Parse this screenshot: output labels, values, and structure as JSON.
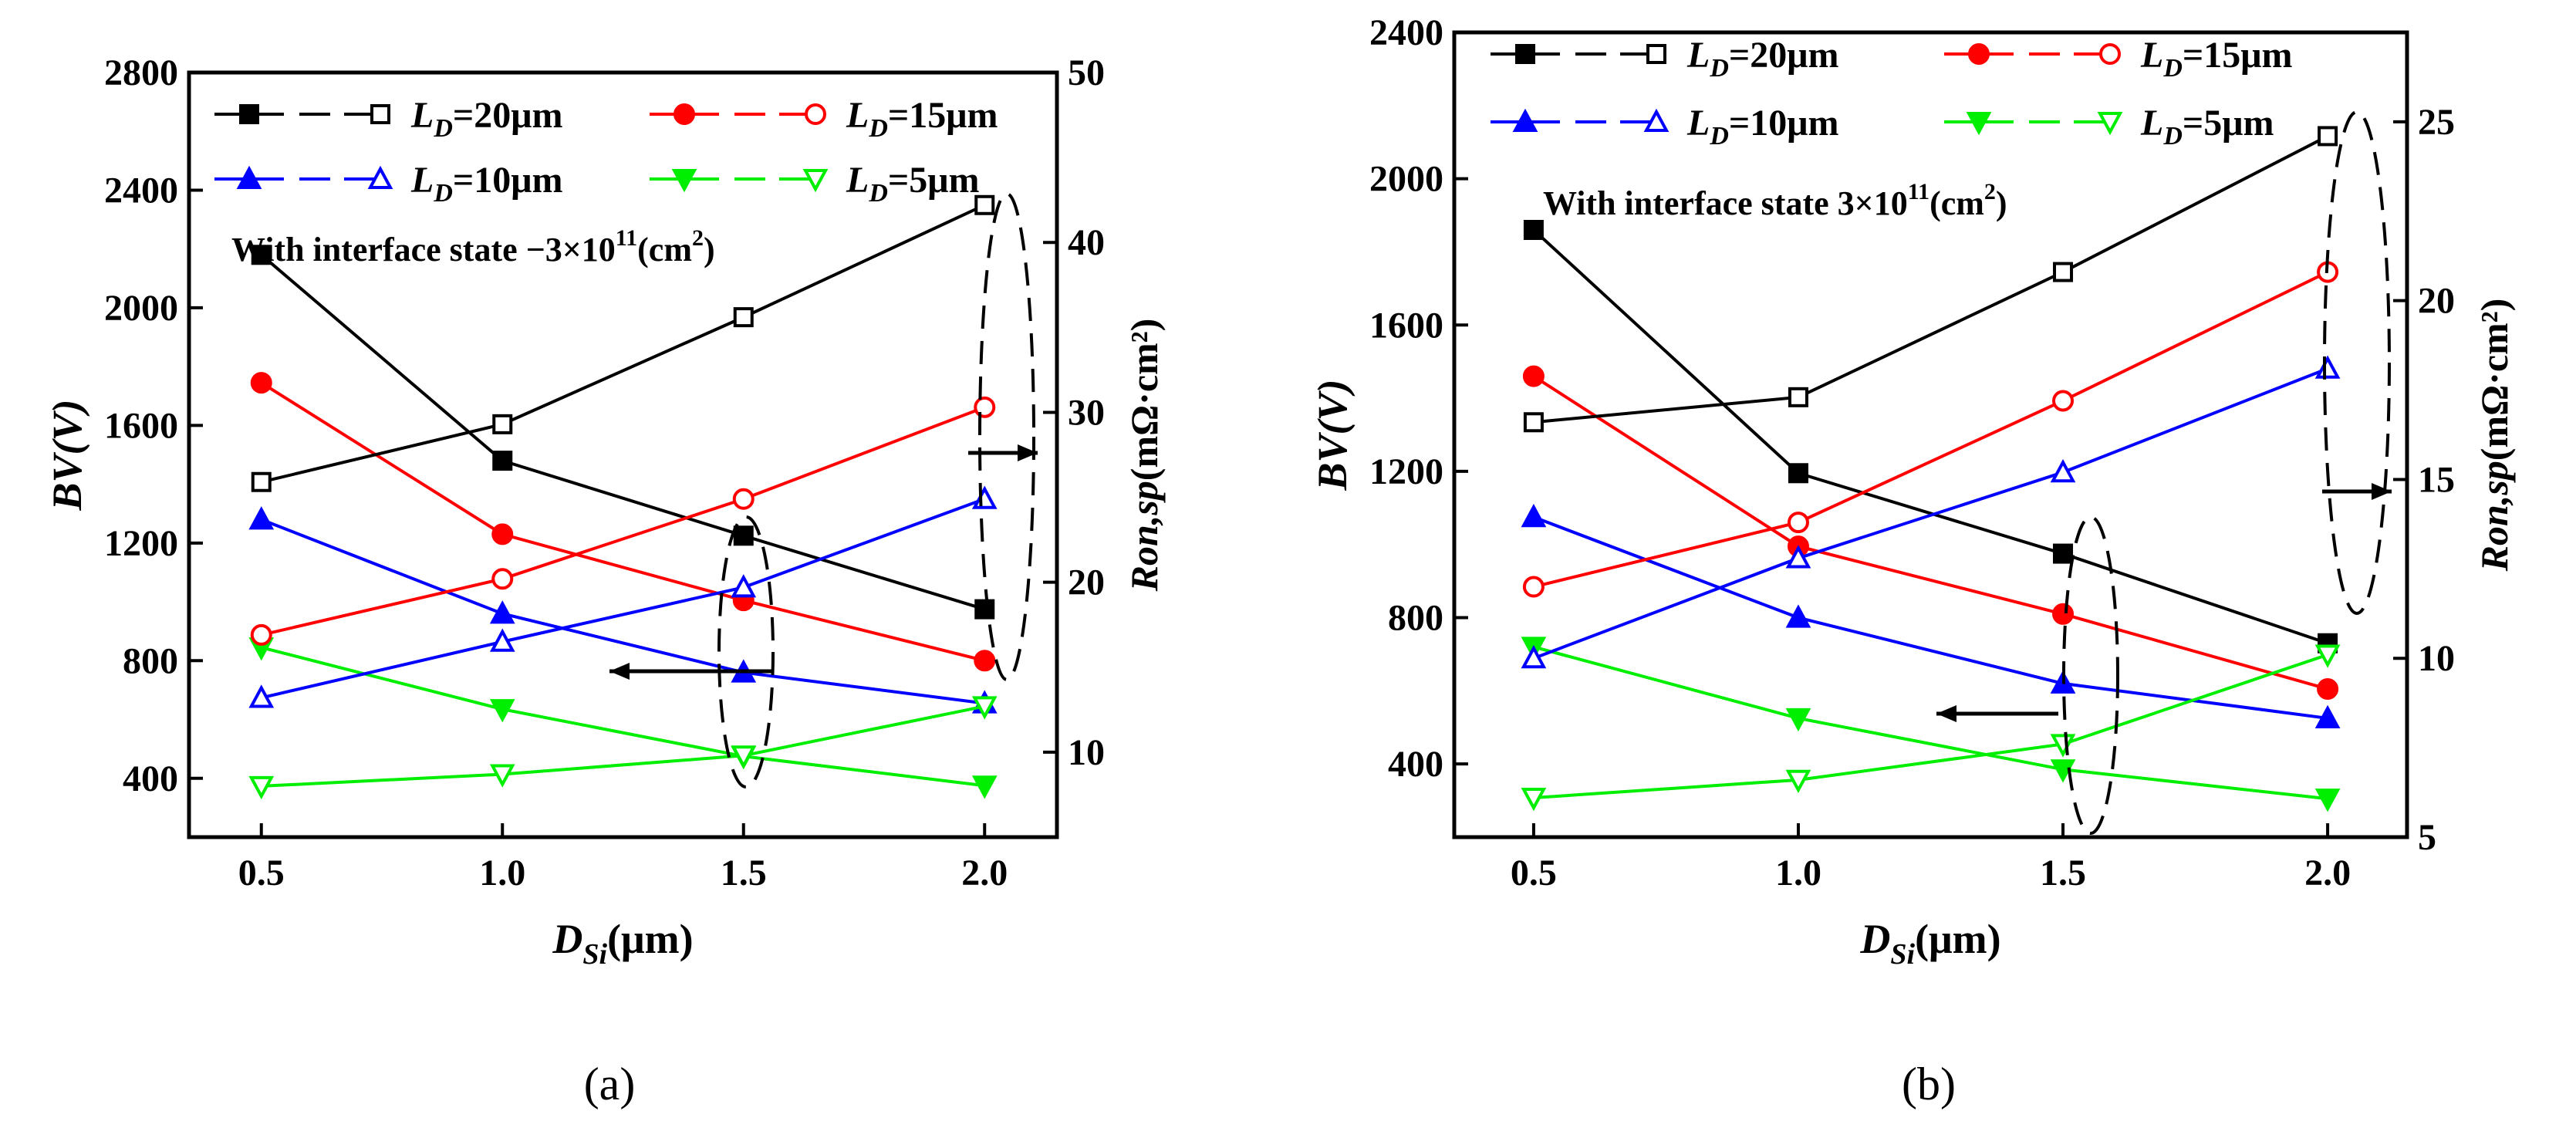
{
  "chart_data": [
    {
      "panel_label": "(a)",
      "type": "line",
      "x": [
        0.5,
        1.0,
        1.5,
        2.0
      ],
      "xlabel": {
        "main": "D",
        "sub": "Si",
        "rest": "(μm)"
      },
      "ylabel_left": "BV(V)",
      "ylabel_right": {
        "main": "R",
        "sub": "on,sp",
        "rest": "(mΩ·cm²)"
      },
      "annotation": {
        "text": "With interface state  −3×10",
        "sup": "11",
        "unit": "(cm",
        "unit_sup": "2",
        "close": ")"
      },
      "xlim": [
        0.35,
        2.15
      ],
      "xticks": [
        "0.5",
        "1.0",
        "1.5",
        "2.0"
      ],
      "ylim_left": [
        200,
        2800
      ],
      "yticks_left": [
        "400",
        "800",
        "1200",
        "1600",
        "2000",
        "2400",
        "2800"
      ],
      "ylim_right": [
        5,
        50
      ],
      "yticks_right": [
        "10",
        "20",
        "30",
        "40",
        "50"
      ],
      "grid": false,
      "legend_position": "top",
      "series": [
        {
          "name": "L_D=20μm",
          "legend": {
            "main": "L",
            "sub": "D",
            "rest": "=20μm"
          },
          "axis": "left",
          "color": "#000000",
          "marker": "square-filled",
          "values": [
            2180,
            1480,
            1225,
            975
          ]
        },
        {
          "name": "L_D=15μm",
          "legend": {
            "main": "L",
            "sub": "D",
            "rest": "=15μm"
          },
          "axis": "left",
          "color": "#ff0000",
          "marker": "circle-filled",
          "values": [
            1745,
            1230,
            1005,
            800
          ]
        },
        {
          "name": "L_D=10μm",
          "legend": {
            "main": "L",
            "sub": "D",
            "rest": "=10μm"
          },
          "axis": "left",
          "color": "#0000ff",
          "marker": "triangle-up-filled",
          "values": [
            1280,
            960,
            760,
            655
          ]
        },
        {
          "name": "L_D=5μm",
          "legend": {
            "main": "L",
            "sub": "D",
            "rest": "=5μm"
          },
          "axis": "left",
          "color": "#00ee00",
          "marker": "triangle-down-filled",
          "values": [
            845,
            635,
            475,
            375
          ]
        },
        {
          "name": "L_D=20μm",
          "axis": "right",
          "color": "#000000",
          "marker": "square-open",
          "values": [
            25.9,
            29.3,
            35.6,
            42.2
          ]
        },
        {
          "name": "L_D=15μm",
          "axis": "right",
          "color": "#ff0000",
          "marker": "circle-open",
          "values": [
            16.9,
            20.2,
            24.9,
            30.3
          ]
        },
        {
          "name": "L_D=10μm",
          "axis": "right",
          "color": "#0000ff",
          "marker": "triangle-up-open",
          "values": [
            13.2,
            16.5,
            19.7,
            24.9
          ]
        },
        {
          "name": "L_D=5μm",
          "axis": "right",
          "color": "#00ee00",
          "marker": "triangle-down-open",
          "values": [
            8.0,
            8.7,
            9.8,
            12.7
          ]
        }
      ]
    },
    {
      "panel_label": "(b)",
      "type": "line",
      "x": [
        0.5,
        1.0,
        1.5,
        2.0
      ],
      "xlabel": {
        "main": "D",
        "sub": "Si",
        "rest": "(μm)"
      },
      "ylabel_left": "BV(V)",
      "ylabel_right": {
        "main": "R",
        "sub": "on,sp",
        "rest": "(mΩ·cm²)"
      },
      "annotation": {
        "text": "With interface state  3×10",
        "sup": "11",
        "unit": "(cm",
        "unit_sup": "2",
        "close": ")"
      },
      "xlim": [
        0.35,
        2.15
      ],
      "xticks": [
        "0.5",
        "1.0",
        "1.5",
        "2.0"
      ],
      "ylim_left": [
        200,
        2400
      ],
      "yticks_left": [
        "400",
        "800",
        "1200",
        "1600",
        "2000",
        "2400"
      ],
      "ylim_right": [
        5,
        27.5
      ],
      "yticks_right": [
        "5",
        "10",
        "15",
        "20",
        "25"
      ],
      "grid": false,
      "legend_position": "top",
      "series": [
        {
          "name": "L_D=20μm",
          "legend": {
            "main": "L",
            "sub": "D",
            "rest": "=20μm"
          },
          "axis": "left",
          "color": "#000000",
          "marker": "square-filled",
          "values": [
            1860,
            1195,
            975,
            730
          ]
        },
        {
          "name": "L_D=15μm",
          "legend": {
            "main": "L",
            "sub": "D",
            "rest": "=15μm"
          },
          "axis": "left",
          "color": "#ff0000",
          "marker": "circle-filled",
          "values": [
            1460,
            995,
            810,
            605
          ]
        },
        {
          "name": "L_D=10μm",
          "legend": {
            "main": "L",
            "sub": "D",
            "rest": "=10μm"
          },
          "axis": "left",
          "color": "#0000ff",
          "marker": "triangle-up-filled",
          "values": [
            1075,
            800,
            620,
            525
          ]
        },
        {
          "name": "L_D=5μm",
          "legend": {
            "main": "L",
            "sub": "D",
            "rest": "=5μm"
          },
          "axis": "left",
          "color": "#00ee00",
          "marker": "triangle-down-filled",
          "values": [
            720,
            525,
            385,
            305
          ]
        },
        {
          "name": "L_D=20μm",
          "axis": "right",
          "color": "#000000",
          "marker": "square-open",
          "values": [
            16.6,
            17.3,
            20.8,
            24.6
          ]
        },
        {
          "name": "L_D=15μm",
          "axis": "right",
          "color": "#ff0000",
          "marker": "circle-open",
          "values": [
            12.0,
            13.8,
            17.2,
            20.8
          ]
        },
        {
          "name": "L_D=10μm",
          "axis": "right",
          "color": "#0000ff",
          "marker": "triangle-up-open",
          "values": [
            10.0,
            12.8,
            15.2,
            18.1
          ]
        },
        {
          "name": "L_D=5μm",
          "axis": "right",
          "color": "#00ee00",
          "marker": "triangle-down-open",
          "values": [
            6.1,
            6.6,
            7.6,
            10.1
          ]
        }
      ]
    }
  ]
}
